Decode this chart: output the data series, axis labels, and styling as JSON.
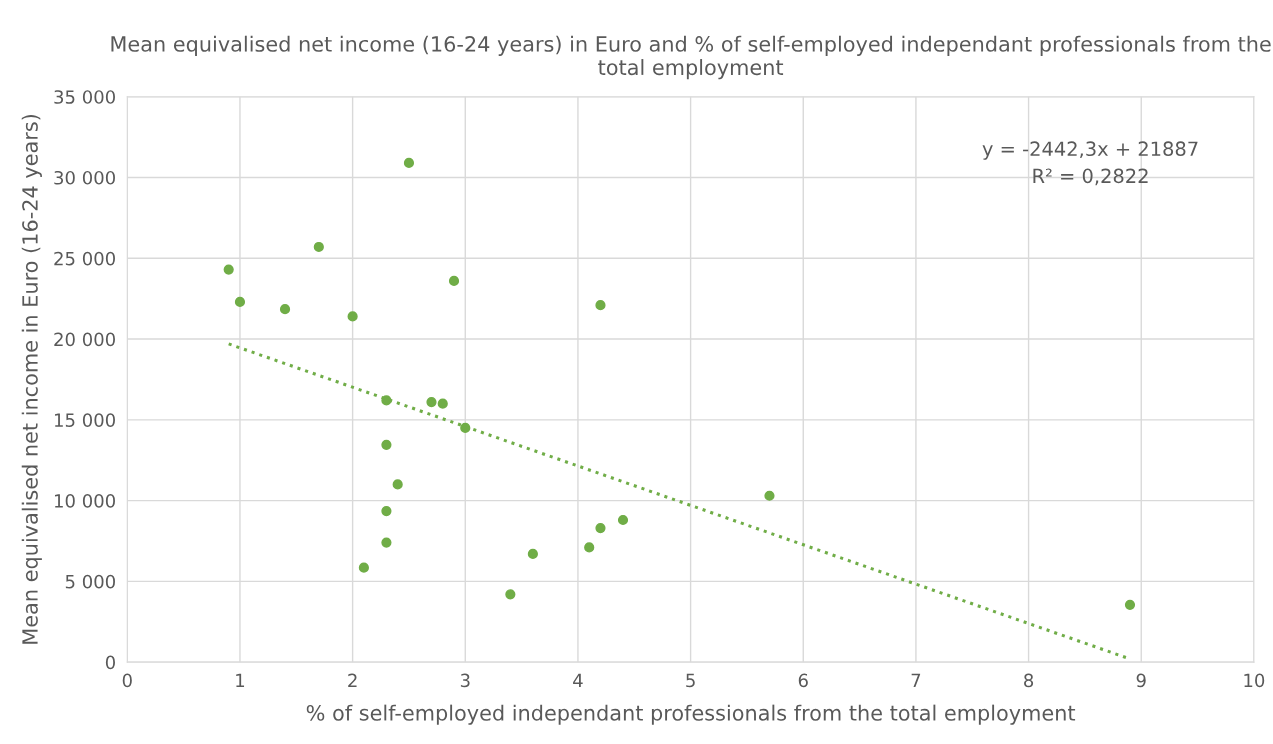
{
  "chart_data": {
    "type": "scatter",
    "title": "Mean equivalised net income (16-24 years) in Euro and % of self-employed independant professionals from the total employment",
    "xlabel": "% of self-employed independant professionals from the total employment",
    "ylabel": "Mean equivalised net income in Euro (16-24 years)",
    "series": [
      {
        "color": "#70ad47",
        "marker": "circle",
        "x": [
          0.9,
          1.0,
          1.4,
          1.7,
          2.0,
          2.5,
          2.9,
          4.2,
          2.3,
          2.7,
          2.8,
          3.0,
          2.3,
          2.4,
          2.3,
          2.3,
          2.1,
          3.4,
          3.6,
          4.1,
          4.2,
          4.4,
          5.7,
          8.9
        ],
        "values": [
          24300,
          22300,
          21850,
          25700,
          21400,
          30900,
          23600,
          22100,
          16200,
          16100,
          16000,
          14500,
          13450,
          11000,
          9350,
          7400,
          5850,
          4200,
          6700,
          7100,
          8300,
          8800,
          10300,
          3550
        ]
      },
      {
        "type": "line",
        "color": "#70ad47",
        "line_style": "dotted",
        "x": [
          0.9,
          8.9
        ],
        "values": [
          19700,
          200
        ]
      }
    ],
    "annotations": [
      "y = -2442,3x + 21887",
      "R² = 0,2822"
    ],
    "xlim": [
      0,
      10
    ],
    "xticks": [
      0,
      1,
      2,
      3,
      4,
      5,
      6,
      7,
      8,
      9,
      10
    ],
    "ylim": [
      0,
      35000
    ],
    "yticks": [
      {
        "value": 0,
        "label": "0"
      },
      {
        "value": 5000,
        "label": "5 000"
      },
      {
        "value": 10000,
        "label": "10 000"
      },
      {
        "value": 15000,
        "label": "15 000"
      },
      {
        "value": 20000,
        "label": "20 000"
      },
      {
        "value": 25000,
        "label": "25 000"
      },
      {
        "value": 30000,
        "label": "30 000"
      },
      {
        "value": 35000,
        "label": "35 000"
      }
    ],
    "grid": true
  }
}
